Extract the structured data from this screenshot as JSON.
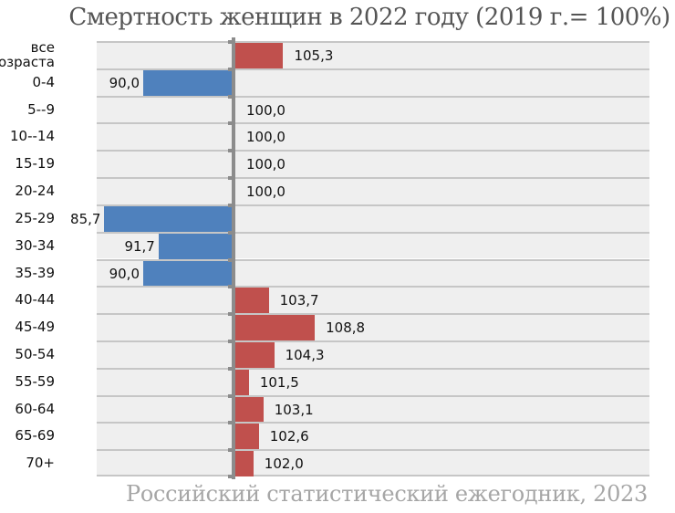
{
  "title": "Смертность женщин в 2022 году (2019 г.= 100%)",
  "source": "Российский статистический ежегодник, 2023",
  "colors": {
    "below_baseline": "#4f81bd",
    "above_baseline": "#c0504d",
    "axis": "#8c8c8c",
    "row_bg": "#efefef"
  },
  "chart_data": {
    "type": "bar",
    "orientation": "horizontal",
    "title": "Смертность женщин в 2022 году (2019 г.= 100%)",
    "baseline": 100,
    "xlabel": "",
    "ylabel": "",
    "categories": [
      "все возраста",
      "0-4",
      "5--9",
      "10--14",
      "15-19",
      "20-24",
      "25-29",
      "30-34",
      "35-39",
      "40-44",
      "45-49",
      "50-54",
      "55-59",
      "60-64",
      "65-69",
      "70+"
    ],
    "values": [
      105.3,
      90.0,
      100.0,
      100.0,
      100.0,
      100.0,
      85.7,
      91.7,
      90.0,
      103.7,
      108.8,
      104.3,
      101.5,
      103.1,
      102.6,
      102.0
    ],
    "labels": [
      "105,3",
      "90,0",
      "100,0",
      "100,0",
      "100,0",
      "100,0",
      "85,7",
      "91,7",
      "90,0",
      "103,7",
      "108,8",
      "104,3",
      "101,5",
      "103,1",
      "102,6",
      "102,0"
    ],
    "grid": true,
    "legend": null,
    "annotation": "Российский статистический ежегодник, 2023"
  }
}
